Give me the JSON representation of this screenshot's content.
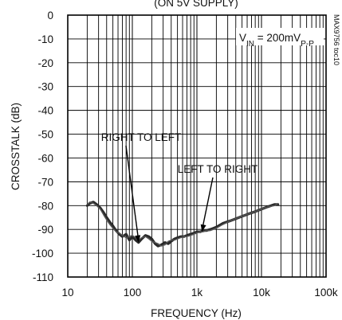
{
  "chart_data": {
    "type": "line",
    "title": "(ON 5V SUPPLY)",
    "xlabel": "FREQUENCY (Hz)",
    "ylabel": "CROSSTALK (dB)",
    "x_scale": "log",
    "xlim": [
      10,
      100000
    ],
    "ylim": [
      -110,
      0
    ],
    "x_ticks": [
      10,
      100,
      1000,
      10000,
      100000
    ],
    "x_tick_labels": [
      "10",
      "100",
      "1k",
      "10k",
      "100k"
    ],
    "y_ticks": [
      0,
      -10,
      -20,
      -30,
      -40,
      -50,
      -60,
      -70,
      -80,
      -90,
      -100,
      -110
    ],
    "y_tick_labels": [
      "0",
      "-10",
      "-20",
      "-30",
      "-40",
      "-50",
      "-60",
      "-70",
      "-80",
      "-90",
      "-100",
      "-110"
    ],
    "grid": true,
    "condition_label": "V_IN = 200mV_P-P",
    "condition_parts": {
      "main": "V",
      "sub1": "IN",
      "mid": " = 200mV",
      "sub2": "P-P"
    },
    "figure_id": "MAX9756 toc10",
    "annotations": [
      {
        "text": "RIGHT TO LEFT",
        "points_to": [
          125,
          -95.5
        ]
      },
      {
        "text": "LEFT TO RIGHT",
        "points_to": [
          1200,
          -91
        ]
      }
    ],
    "series": [
      {
        "name": "RIGHT TO LEFT",
        "x": [
          20,
          22,
          25,
          28,
          32,
          36,
          40,
          45,
          50,
          56,
          63,
          70,
          80,
          90,
          100,
          112,
          125,
          140,
          160,
          180,
          200,
          225,
          250,
          280,
          320,
          360,
          400,
          450,
          500,
          560,
          630,
          700,
          800,
          900,
          1000,
          1120,
          1250,
          1400,
          1600,
          1800,
          2000,
          2500,
          3200,
          4000,
          5000,
          6300,
          8000,
          10000,
          12500,
          16000,
          18000
        ],
        "y": [
          -80,
          -79,
          -78.5,
          -79.5,
          -81,
          -83,
          -85,
          -87,
          -88.5,
          -90.5,
          -92,
          -93,
          -92,
          -94.5,
          -93,
          -94.5,
          -95.5,
          -94,
          -92.5,
          -93,
          -94,
          -96,
          -97,
          -96.5,
          -95.5,
          -96,
          -95,
          -94,
          -93.5,
          -93,
          -93,
          -92.5,
          -92,
          -91.5,
          -91,
          -91,
          -90.5,
          -90.5,
          -90,
          -89.5,
          -89,
          -87.5,
          -86.5,
          -85.5,
          -84.5,
          -83.5,
          -82.5,
          -81.5,
          -80.5,
          -79.5,
          -79.5
        ]
      },
      {
        "name": "LEFT TO RIGHT",
        "x": [
          20,
          22,
          25,
          28,
          32,
          36,
          40,
          45,
          50,
          56,
          63,
          70,
          80,
          90,
          100,
          112,
          125,
          140,
          160,
          180,
          200,
          225,
          250,
          280,
          320,
          360,
          400,
          450,
          500,
          560,
          630,
          700,
          800,
          900,
          1000,
          1120,
          1250,
          1400,
          1600,
          1800,
          2000,
          2500,
          3200,
          4000,
          5000,
          6300,
          8000,
          10000,
          12500,
          16000,
          18000
        ],
        "y": [
          -79.5,
          -78.5,
          -79,
          -80,
          -81.5,
          -84,
          -86,
          -88,
          -89.5,
          -91,
          -91.5,
          -92.5,
          -93.5,
          -93,
          -92.5,
          -93.5,
          -94.5,
          -93.5,
          -93,
          -94,
          -95,
          -95.5,
          -96,
          -97,
          -96.5,
          -95,
          -94.5,
          -94.5,
          -94,
          -93.5,
          -93,
          -93,
          -92.5,
          -92,
          -91.5,
          -91,
          -91,
          -90.5,
          -90.5,
          -90,
          -89.5,
          -88,
          -86.5,
          -85.5,
          -84.5,
          -83.5,
          -82.5,
          -81.5,
          -80.5,
          -80,
          -79
        ]
      }
    ]
  }
}
